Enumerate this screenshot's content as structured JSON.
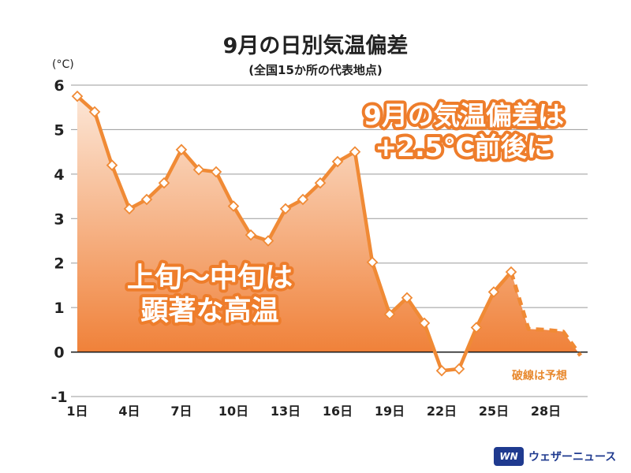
{
  "title": "9月の日別気温偏差",
  "subtitle": "(全国15か所の代表地点)",
  "unit": "(°C)",
  "annotations": {
    "top_right_line1": "9月の気温偏差は",
    "top_right_line2": "+2.5℃前後に",
    "left_line1": "上旬～中旬は",
    "left_line2": "顕著な高温",
    "forecast_note": "破線は予想"
  },
  "logo": {
    "text": "ウェザーニュース",
    "mark": "WN",
    "mark_icon": "weathernews-logo-icon"
  },
  "colors": {
    "line": "#f08a35",
    "fill_top": "#fce6d6",
    "fill_bottom": "#ef7a2e",
    "outline_text": "#ee7d2b",
    "forecast_text": "#e8892f"
  },
  "chart_data": {
    "type": "line",
    "xlabel": "",
    "ylabel": "(°C)",
    "ylim": [
      -1,
      6
    ],
    "yticks": [
      "-1",
      "0",
      "1",
      "2",
      "3",
      "4",
      "5",
      "6"
    ],
    "xlim": [
      1,
      30
    ],
    "xticks": [
      {
        "day": 1,
        "label": "1日"
      },
      {
        "day": 4,
        "label": "4日"
      },
      {
        "day": 7,
        "label": "7日"
      },
      {
        "day": 10,
        "label": "10日"
      },
      {
        "day": 13,
        "label": "13日"
      },
      {
        "day": 16,
        "label": "16日"
      },
      {
        "day": 19,
        "label": "19日"
      },
      {
        "day": 22,
        "label": "22日"
      },
      {
        "day": 25,
        "label": "25日"
      },
      {
        "day": 28,
        "label": "28日"
      }
    ],
    "grid": true,
    "series": [
      {
        "style": "solid",
        "markers": true,
        "x": [
          1,
          2,
          3,
          4,
          5,
          6,
          7,
          8,
          9,
          10,
          11,
          12,
          13,
          14,
          15,
          16,
          17,
          18,
          19,
          20,
          21,
          22,
          23,
          24,
          25,
          26
        ],
        "values": [
          5.75,
          5.4,
          4.2,
          3.22,
          3.43,
          3.8,
          4.55,
          4.1,
          4.05,
          3.28,
          2.63,
          2.5,
          3.22,
          3.43,
          3.8,
          4.28,
          4.5,
          2.02,
          0.85,
          1.22,
          0.65,
          -0.42,
          -0.38,
          0.55,
          1.35,
          1.8
        ]
      },
      {
        "style": "dashed",
        "markers": false,
        "x": [
          26,
          27,
          28,
          29,
          30
        ],
        "values": [
          1.8,
          0.52,
          0.5,
          0.46,
          -0.08
        ]
      }
    ]
  }
}
